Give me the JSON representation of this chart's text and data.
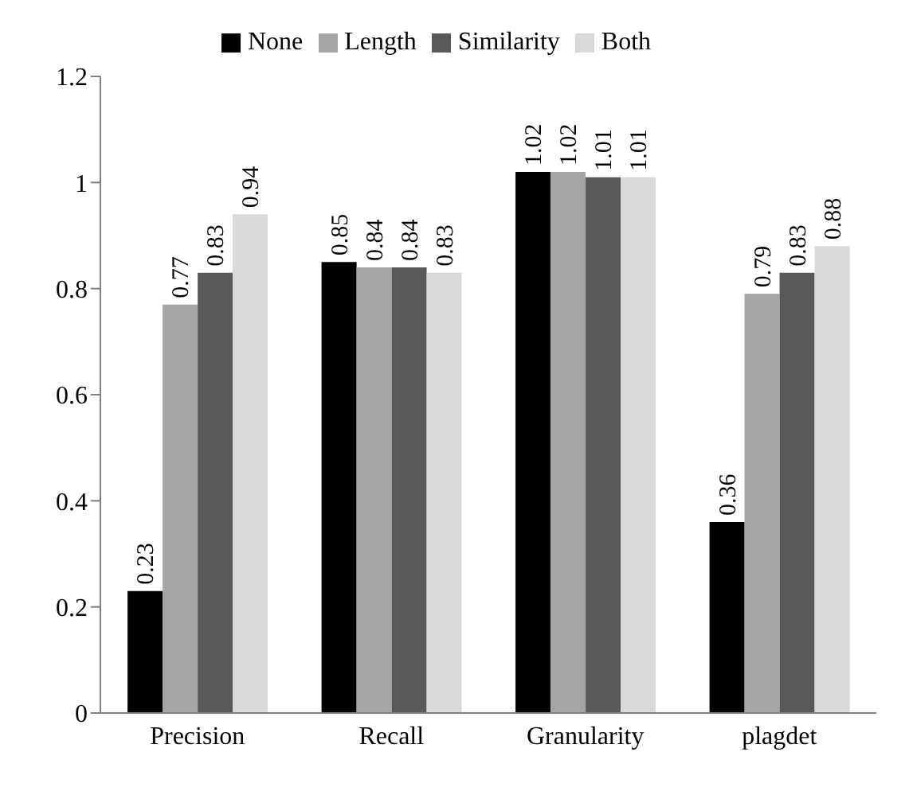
{
  "chart_data": {
    "type": "bar",
    "categories": [
      "Precision",
      "Recall",
      "Granularity",
      "plagdet"
    ],
    "series": [
      {
        "name": "None",
        "color": "#000000",
        "values": [
          0.23,
          0.85,
          1.02,
          0.36
        ]
      },
      {
        "name": "Length",
        "color": "#a6a6a6",
        "values": [
          0.77,
          0.84,
          1.02,
          0.79
        ]
      },
      {
        "name": "Similarity",
        "color": "#595959",
        "values": [
          0.83,
          0.84,
          1.01,
          0.83
        ]
      },
      {
        "name": "Both",
        "color": "#d9d9d9",
        "values": [
          0.94,
          0.83,
          1.01,
          0.88
        ]
      }
    ],
    "ylim": [
      0,
      1.2
    ],
    "yticks": [
      0,
      0.2,
      0.4,
      0.6,
      0.8,
      1,
      1.2
    ],
    "data_labels": true,
    "legend": "top",
    "grid": false
  }
}
